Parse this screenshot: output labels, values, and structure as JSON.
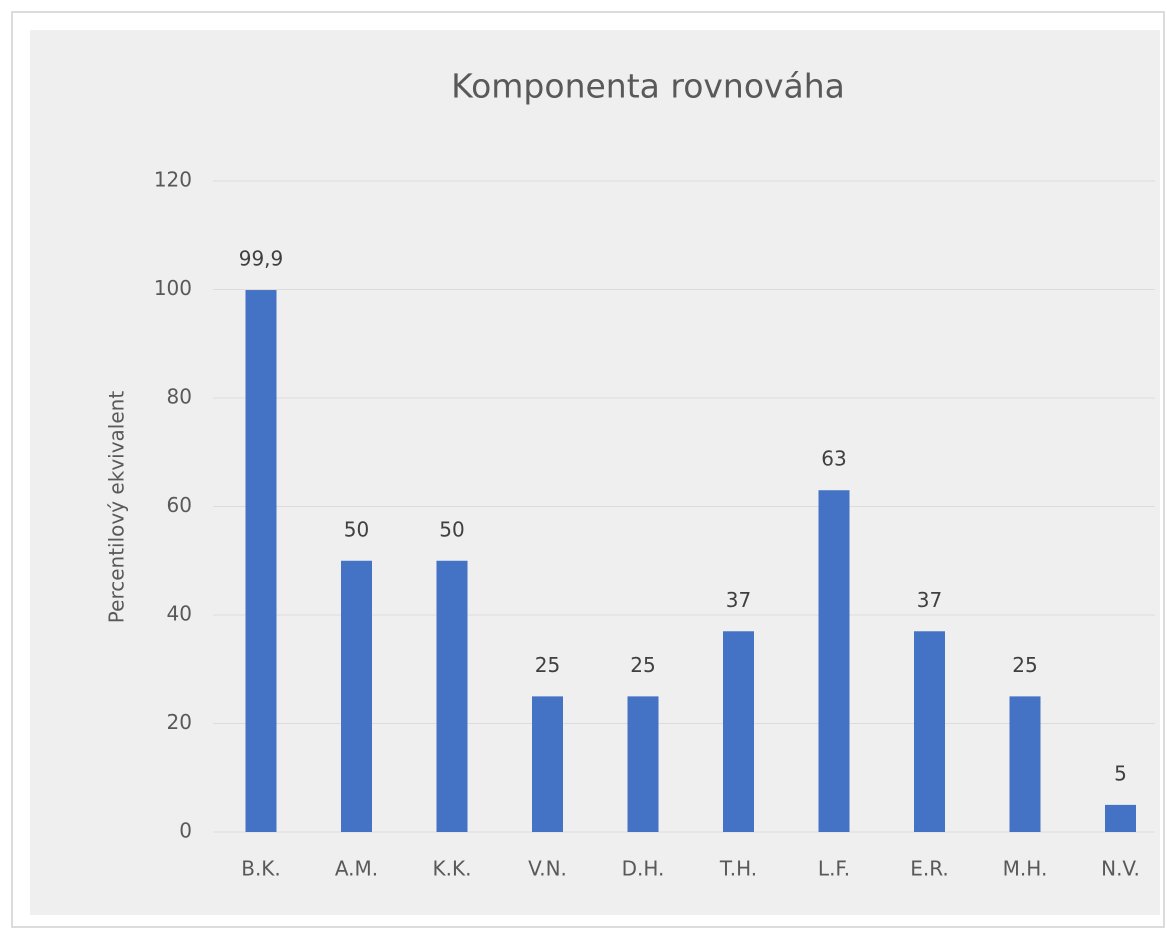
{
  "chart_data": {
    "type": "bar",
    "title": "Komponenta rovnováha",
    "y_label": "Percentilový ekvivalent",
    "categories": [
      "B.K.",
      "A.M.",
      "K.K.",
      "V.N.",
      "D.H.",
      "T.H.",
      "L.F.",
      "E.R.",
      "M.H.",
      "N.V."
    ],
    "values": [
      99.9,
      50,
      50,
      25,
      25,
      37,
      63,
      37,
      25,
      5
    ],
    "value_labels": [
      "99,9",
      "50",
      "50",
      "25",
      "25",
      "37",
      "63",
      "37",
      "25",
      "5"
    ],
    "color": "#4472c4",
    "ylim": [
      0,
      120
    ],
    "yticks": [
      0,
      20,
      40,
      60,
      80,
      100,
      120
    ],
    "grid": true
  }
}
